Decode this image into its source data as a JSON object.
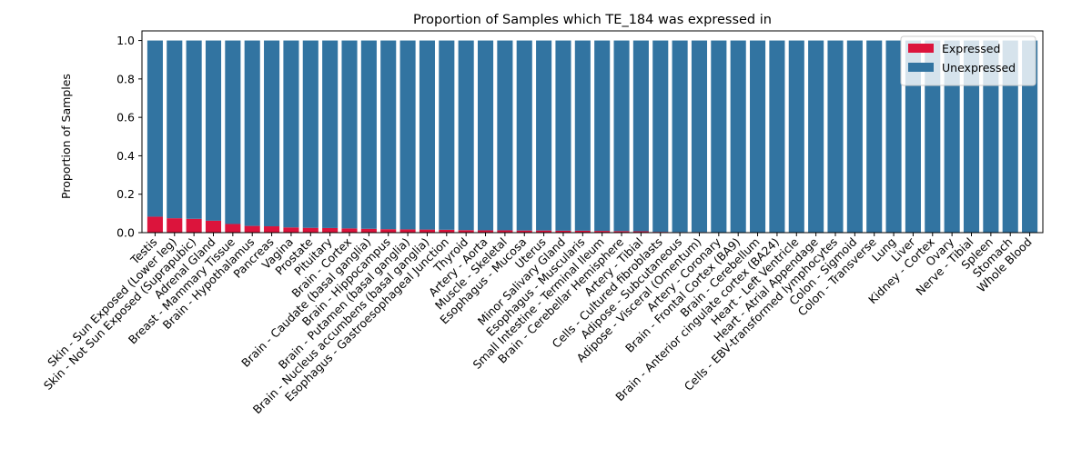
{
  "chart_data": {
    "type": "bar",
    "stacked": true,
    "title": "Proportion of Samples which TE_184 was expressed in",
    "xlabel": "",
    "ylabel": "Proportion of Samples",
    "ylim": [
      0,
      1.05
    ],
    "yticks": [
      "0.0",
      "0.2",
      "0.4",
      "0.6",
      "0.8",
      "1.0"
    ],
    "legend_position": "top-right",
    "grid": false,
    "categories": [
      "Testis",
      "Skin - Sun Exposed (Lower leg)",
      "Skin - Not Sun Exposed (Suprapubic)",
      "Adrenal Gland",
      "Breast - Mammary Tissue",
      "Brain - Hypothalamus",
      "Pancreas",
      "Vagina",
      "Prostate",
      "Pituitary",
      "Brain - Cortex",
      "Brain - Caudate (basal ganglia)",
      "Brain - Hippocampus",
      "Brain - Putamen (basal ganglia)",
      "Brain - Nucleus accumbens (basal ganglia)",
      "Esophagus - Gastroesophageal Junction",
      "Thyroid",
      "Artery - Aorta",
      "Muscle - Skeletal",
      "Esophagus - Mucosa",
      "Uterus",
      "Minor Salivary Gland",
      "Esophagus - Muscularis",
      "Small Intestine - Terminal Ileum",
      "Brain - Cerebellar Hemisphere",
      "Artery - Tibial",
      "Cells - Cultured fibroblasts",
      "Adipose - Subcutaneous",
      "Adipose - Visceral (Omentum)",
      "Artery - Coronary",
      "Brain - Frontal Cortex (BA9)",
      "Brain - Cerebellum",
      "Brain - Anterior cingulate cortex (BA24)",
      "Heart - Left Ventricle",
      "Heart - Atrial Appendage",
      "Cells - EBV-transformed lymphocytes",
      "Colon - Sigmoid",
      "Colon - Transverse",
      "Lung",
      "Liver",
      "Kidney - Cortex",
      "Ovary",
      "Nerve - Tibial",
      "Spleen",
      "Stomach",
      "Whole Blood"
    ],
    "series": [
      {
        "name": "Expressed",
        "color": "#dc143c",
        "values": [
          0.083,
          0.075,
          0.072,
          0.062,
          0.045,
          0.035,
          0.033,
          0.027,
          0.025,
          0.024,
          0.022,
          0.02,
          0.018,
          0.017,
          0.016,
          0.015,
          0.013,
          0.012,
          0.012,
          0.011,
          0.011,
          0.01,
          0.01,
          0.009,
          0.008,
          0.007,
          0.004,
          0.003,
          0.003,
          0.002,
          0,
          0,
          0,
          0,
          0,
          0,
          0,
          0,
          0,
          0,
          0,
          0,
          0,
          0,
          0,
          0
        ]
      },
      {
        "name": "Unexpressed",
        "color": "#3274a1",
        "values": [
          0.917,
          0.925,
          0.928,
          0.938,
          0.955,
          0.965,
          0.967,
          0.973,
          0.975,
          0.976,
          0.978,
          0.98,
          0.982,
          0.983,
          0.984,
          0.985,
          0.987,
          0.988,
          0.988,
          0.989,
          0.989,
          0.99,
          0.99,
          0.991,
          0.992,
          0.993,
          0.996,
          0.997,
          0.997,
          0.998,
          1,
          1,
          1,
          1,
          1,
          1,
          1,
          1,
          1,
          1,
          1,
          1,
          1,
          1,
          1,
          1
        ]
      }
    ]
  }
}
